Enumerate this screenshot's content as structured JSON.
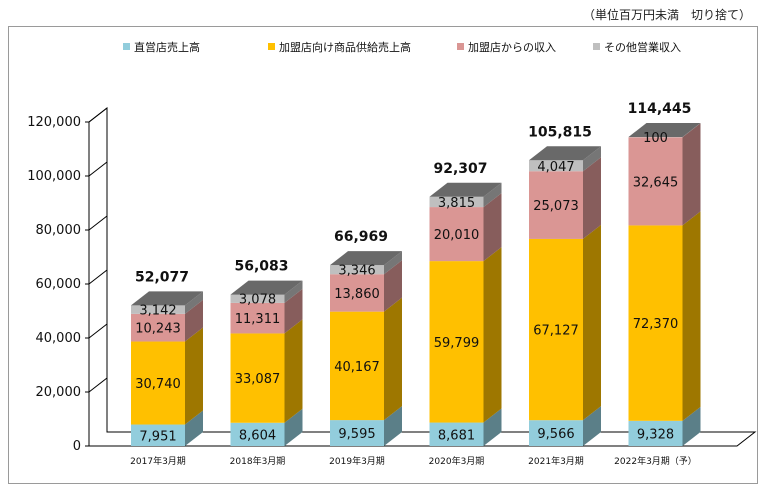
{
  "unit_note": "（単位百万円未満　切り捨て）",
  "chart_data": {
    "type": "bar",
    "stacked": true,
    "three_d": true,
    "categories": [
      "2017年3月期",
      "2018年3月期",
      "2019年3月期",
      "2020年3月期",
      "2021年3月期",
      "2022年3月期（予）"
    ],
    "series": [
      {
        "name": "直営店売上高",
        "color": "#92CDDC",
        "values": [
          7951,
          8604,
          9595,
          8681,
          9566,
          9328
        ],
        "labels": [
          "7,951",
          "8,604",
          "9,595",
          "8,681",
          "9,566",
          "9,328"
        ]
      },
      {
        "name": "加盟店向け商品供給売上高",
        "color": "#FFC000",
        "values": [
          30740,
          33087,
          40167,
          59799,
          67127,
          72370
        ],
        "labels": [
          "30,740",
          "33,087",
          "40,167",
          "59,799",
          "67,127",
          "72,370"
        ]
      },
      {
        "name": "加盟店からの収入",
        "color": "#DA9694",
        "values": [
          10243,
          11311,
          13860,
          20010,
          25073,
          32645
        ],
        "labels": [
          "10,243",
          "11,311",
          "13,860",
          "20,010",
          "25,073",
          "32,645"
        ]
      },
      {
        "name": "その他営業収入",
        "color": "#BFBFBF",
        "values": [
          3142,
          3078,
          3346,
          3815,
          4047,
          100
        ],
        "labels": [
          "3,142",
          "3,078",
          "3,346",
          "3,815",
          "4,047",
          "100"
        ]
      }
    ],
    "totals": [
      52077,
      56083,
      66969,
      92307,
      105815,
      114445
    ],
    "total_labels": [
      "52,077",
      "56,083",
      "66,969",
      "92,307",
      "105,815",
      "114,445"
    ],
    "yticks": [
      0,
      20000,
      40000,
      60000,
      80000,
      100000,
      120000
    ],
    "ytick_labels": [
      "0",
      "20,000",
      "40,000",
      "60,000",
      "80,000",
      "100,000",
      "120,000"
    ],
    "ylim": [
      0,
      120000
    ],
    "grid": false,
    "legend_position": "top"
  }
}
